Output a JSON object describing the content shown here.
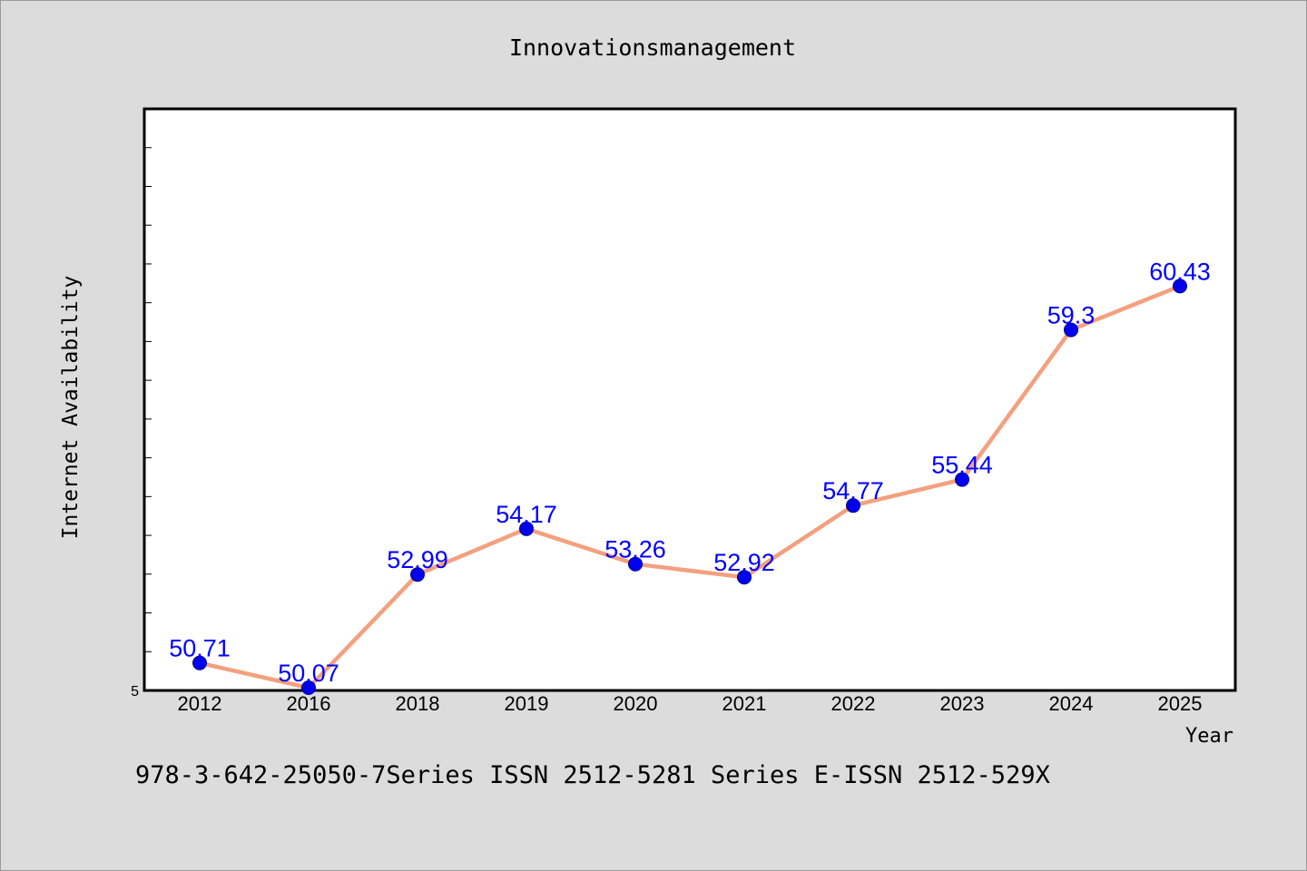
{
  "chart_data": {
    "type": "line",
    "title": "Innovationsmanagement",
    "xlabel": "Year",
    "ylabel": "Internet Availability",
    "categories": [
      "2012",
      "2016",
      "2018",
      "2019",
      "2020",
      "2021",
      "2022",
      "2023",
      "2024",
      "2025"
    ],
    "series": [
      {
        "values": [
          50.71,
          50.07,
          52.99,
          54.17,
          53.26,
          52.92,
          54.77,
          55.44,
          59.3,
          60.43
        ],
        "labels": [
          "50.71",
          "50.07",
          "52.99",
          "54.17",
          "53.26",
          "52.92",
          "54.77",
          "55.44",
          "59.3",
          "60.43"
        ],
        "line_color": "#f4a07f",
        "marker_color": "#0000ee",
        "label_color": "#0000ff"
      }
    ],
    "ylim": [
      50,
      65
    ],
    "y_tick_labels": [
      "5"
    ],
    "grid": false,
    "legend": "none"
  },
  "footer": "978-3-642-25050-7Series ISSN 2512-5281 Series E-ISSN 2512-529X"
}
